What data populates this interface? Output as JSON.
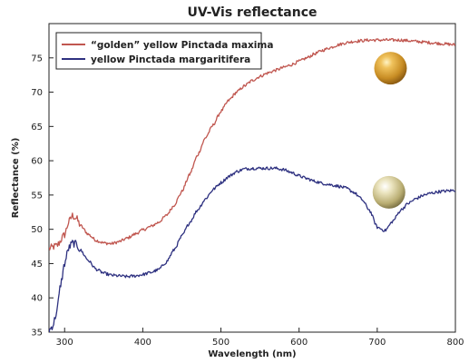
{
  "chart_data": {
    "type": "line",
    "title": "UV-Vis reflectance",
    "xlabel": "Wavelength (nm)",
    "ylabel": "Reflectance (%)",
    "xlim": [
      280,
      800
    ],
    "ylim": [
      35,
      80
    ],
    "x_ticks": [
      300,
      400,
      500,
      600,
      700,
      800
    ],
    "y_ticks": [
      35,
      40,
      45,
      50,
      55,
      60,
      65,
      70,
      75
    ],
    "grid": false,
    "legend_position": "top-left",
    "series": [
      {
        "name": "“golden” yellow Pinctada maxima",
        "color": "#c0564f",
        "x": [
          280,
          290,
          300,
          305,
          310,
          315,
          320,
          330,
          340,
          350,
          360,
          370,
          380,
          390,
          400,
          410,
          420,
          430,
          440,
          450,
          460,
          470,
          480,
          490,
          500,
          510,
          520,
          530,
          540,
          550,
          560,
          570,
          580,
          590,
          600,
          610,
          620,
          630,
          640,
          650,
          660,
          670,
          680,
          690,
          700,
          710,
          720,
          730,
          740,
          750,
          760,
          770,
          780,
          790,
          800
        ],
        "values": [
          47.2,
          47.6,
          49.2,
          51.0,
          52.0,
          51.6,
          50.6,
          49.3,
          48.4,
          48.0,
          47.9,
          48.2,
          48.7,
          49.3,
          49.9,
          50.4,
          51.0,
          52.0,
          53.5,
          55.5,
          58.0,
          60.8,
          63.3,
          65.2,
          67.2,
          68.8,
          70.0,
          70.9,
          71.7,
          72.3,
          72.8,
          73.2,
          73.6,
          74.0,
          74.5,
          75.0,
          75.6,
          76.1,
          76.5,
          76.9,
          77.2,
          77.4,
          77.5,
          77.6,
          77.6,
          77.6,
          77.6,
          77.6,
          77.5,
          77.4,
          77.3,
          77.2,
          77.1,
          77.0,
          76.9
        ]
      },
      {
        "name": "yellow Pinctada margaritifera",
        "color": "#2e3180",
        "x": [
          280,
          285,
          290,
          295,
          300,
          305,
          310,
          315,
          320,
          330,
          340,
          350,
          360,
          370,
          380,
          390,
          400,
          410,
          420,
          430,
          440,
          450,
          460,
          470,
          480,
          490,
          500,
          510,
          520,
          530,
          540,
          550,
          560,
          570,
          580,
          590,
          600,
          610,
          620,
          630,
          640,
          650,
          660,
          670,
          680,
          690,
          700,
          710,
          720,
          730,
          740,
          750,
          760,
          770,
          780,
          790,
          800
        ],
        "values": [
          35.2,
          36.0,
          38.0,
          42.0,
          45.0,
          47.2,
          48.0,
          47.8,
          47.0,
          45.5,
          44.2,
          43.6,
          43.3,
          43.2,
          43.1,
          43.2,
          43.4,
          43.7,
          44.1,
          45.2,
          47.0,
          49.0,
          51.0,
          52.8,
          54.4,
          55.8,
          56.8,
          57.7,
          58.4,
          58.8,
          58.9,
          58.9,
          58.9,
          58.9,
          58.7,
          58.3,
          57.8,
          57.4,
          57.0,
          56.7,
          56.5,
          56.3,
          56.0,
          55.4,
          54.4,
          52.8,
          50.3,
          49.8,
          51.2,
          52.8,
          53.8,
          54.5,
          55.0,
          55.3,
          55.5,
          55.6,
          55.7
        ]
      }
    ]
  },
  "decorations": {
    "golden_pearl": {
      "icon": "golden-pearl-icon",
      "color": "#d9a13a",
      "wavelength": 717,
      "reflectance": 73.5
    },
    "yellow_pearl": {
      "icon": "yellow-pearl-icon",
      "color": "#d8cf9a",
      "wavelength": 715,
      "reflectance": 55.4
    }
  }
}
